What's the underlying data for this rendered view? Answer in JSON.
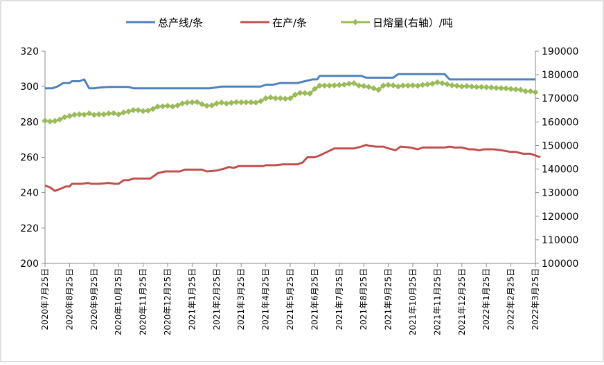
{
  "chart_data": {
    "type": "line",
    "title": "",
    "legend_position": "top",
    "grid": false,
    "x_categories": [
      "2020年7月25日",
      "2020年8月25日",
      "2020年9月25日",
      "2020年10月25日",
      "2020年11月25日",
      "2020年12月25日",
      "2021年1月25日",
      "2021年2月25日",
      "2021年3月25日",
      "2021年4月25日",
      "2021年5月25日",
      "2021年6月25日",
      "2021年7月25日",
      "2021年8月25日",
      "2021年9月25日",
      "2021年10月25日",
      "2021年11月25日",
      "2021年12月25日",
      "2022年1月25日",
      "2022年2月25日",
      "2022年3月25日"
    ],
    "y_left": {
      "min": 200,
      "max": 320,
      "step": 20,
      "ticks": [
        "200",
        "220",
        "240",
        "260",
        "280",
        "300",
        "320"
      ]
    },
    "y_right": {
      "min": 100000,
      "max": 190000,
      "step": 10000,
      "ticks": [
        "100000",
        "110000",
        "120000",
        "130000",
        "140000",
        "150000",
        "160000",
        "170000",
        "180000",
        "190000"
      ]
    },
    "series": [
      {
        "name": "总产线/条",
        "axis": "left",
        "color": "#4F81BD",
        "marker": "none",
        "values": [
          [
            0,
            299
          ],
          [
            0.3,
            299
          ],
          [
            0.5,
            300
          ],
          [
            0.75,
            302
          ],
          [
            1.0,
            302
          ],
          [
            1.1,
            303
          ],
          [
            1.4,
            303
          ],
          [
            1.6,
            304
          ],
          [
            1.8,
            299
          ],
          [
            2.0,
            299
          ],
          [
            2.3,
            299.5
          ],
          [
            2.6,
            299.8
          ],
          [
            3.0,
            299.8
          ],
          [
            3.4,
            299.8
          ],
          [
            3.6,
            299
          ],
          [
            4.0,
            299
          ],
          [
            5.0,
            299
          ],
          [
            6.0,
            299
          ],
          [
            6.7,
            299
          ],
          [
            7.0,
            299.5
          ],
          [
            7.2,
            300
          ],
          [
            8.0,
            300
          ],
          [
            8.8,
            300
          ],
          [
            9.0,
            301
          ],
          [
            9.3,
            301
          ],
          [
            9.6,
            302
          ],
          [
            10.0,
            302
          ],
          [
            10.3,
            302
          ],
          [
            10.6,
            303
          ],
          [
            10.9,
            304
          ],
          [
            11.1,
            304
          ],
          [
            11.2,
            306
          ],
          [
            12.0,
            306
          ],
          [
            12.6,
            306
          ],
          [
            12.9,
            306
          ],
          [
            13.1,
            305
          ],
          [
            14.0,
            305
          ],
          [
            14.2,
            305
          ],
          [
            14.4,
            307
          ],
          [
            15.0,
            307
          ],
          [
            15.5,
            307
          ],
          [
            16.0,
            307
          ],
          [
            16.3,
            307
          ],
          [
            16.5,
            304
          ],
          [
            17.0,
            304
          ],
          [
            18.0,
            304
          ],
          [
            19.0,
            304
          ],
          [
            20.0,
            304
          ]
        ]
      },
      {
        "name": "在产/条",
        "axis": "left",
        "color": "#C0504D",
        "marker": "none",
        "values": [
          [
            0,
            244
          ],
          [
            0.2,
            243
          ],
          [
            0.4,
            241
          ],
          [
            0.6,
            242
          ],
          [
            0.85,
            243.5
          ],
          [
            1.0,
            243.5
          ],
          [
            1.1,
            245
          ],
          [
            1.5,
            245
          ],
          [
            1.75,
            245.5
          ],
          [
            1.9,
            245
          ],
          [
            2.2,
            245
          ],
          [
            2.6,
            245.5
          ],
          [
            2.85,
            245
          ],
          [
            3.0,
            245
          ],
          [
            3.2,
            247
          ],
          [
            3.4,
            247
          ],
          [
            3.6,
            248
          ],
          [
            4.0,
            248
          ],
          [
            4.3,
            248
          ],
          [
            4.6,
            251
          ],
          [
            4.9,
            252
          ],
          [
            5.3,
            252
          ],
          [
            5.5,
            252
          ],
          [
            5.7,
            253
          ],
          [
            6.0,
            253
          ],
          [
            6.4,
            253
          ],
          [
            6.6,
            252
          ],
          [
            7.0,
            252.5
          ],
          [
            7.3,
            253.5
          ],
          [
            7.5,
            254.5
          ],
          [
            7.7,
            254
          ],
          [
            7.9,
            255
          ],
          [
            8.2,
            255
          ],
          [
            8.5,
            255
          ],
          [
            8.9,
            255
          ],
          [
            9.0,
            255.5
          ],
          [
            9.4,
            255.5
          ],
          [
            9.7,
            256
          ],
          [
            10.0,
            256
          ],
          [
            10.3,
            256
          ],
          [
            10.5,
            257
          ],
          [
            10.7,
            260
          ],
          [
            11.0,
            260
          ],
          [
            11.2,
            261
          ],
          [
            11.5,
            263
          ],
          [
            11.8,
            265
          ],
          [
            12.0,
            265
          ],
          [
            12.6,
            265
          ],
          [
            12.9,
            266
          ],
          [
            13.1,
            267
          ],
          [
            13.2,
            266.5
          ],
          [
            13.5,
            266
          ],
          [
            13.8,
            266
          ],
          [
            14.0,
            265
          ],
          [
            14.3,
            264
          ],
          [
            14.5,
            266
          ],
          [
            14.9,
            265.5
          ],
          [
            15.2,
            264.5
          ],
          [
            15.4,
            265.5
          ],
          [
            16.0,
            265.5
          ],
          [
            16.3,
            265.5
          ],
          [
            16.5,
            266
          ],
          [
            16.7,
            265.5
          ],
          [
            17.0,
            265.5
          ],
          [
            17.3,
            264.5
          ],
          [
            17.5,
            264.5
          ],
          [
            17.7,
            264
          ],
          [
            17.9,
            264.5
          ],
          [
            18.3,
            264.5
          ],
          [
            18.6,
            264
          ],
          [
            19.0,
            263
          ],
          [
            19.2,
            263
          ],
          [
            19.5,
            262
          ],
          [
            19.8,
            262
          ],
          [
            20.0,
            261
          ],
          [
            20.2,
            260
          ]
        ]
      },
      {
        "name": "日熔量(右轴）/吨",
        "axis": "right",
        "color": "#9BBB59",
        "marker": "diamond",
        "values": [
          [
            0,
            160500
          ],
          [
            0.2,
            160200
          ],
          [
            0.4,
            160400
          ],
          [
            0.6,
            161000
          ],
          [
            0.8,
            162000
          ],
          [
            1.0,
            162500
          ],
          [
            1.2,
            163000
          ],
          [
            1.4,
            163200
          ],
          [
            1.6,
            163100
          ],
          [
            1.8,
            163600
          ],
          [
            2.0,
            163000
          ],
          [
            2.2,
            163200
          ],
          [
            2.4,
            163200
          ],
          [
            2.6,
            163600
          ],
          [
            2.8,
            163700
          ],
          [
            3.0,
            163200
          ],
          [
            3.2,
            164000
          ],
          [
            3.4,
            164400
          ],
          [
            3.6,
            165000
          ],
          [
            3.8,
            165000
          ],
          [
            4.0,
            164600
          ],
          [
            4.2,
            164800
          ],
          [
            4.4,
            165500
          ],
          [
            4.6,
            166500
          ],
          [
            4.8,
            166600
          ],
          [
            5.0,
            166800
          ],
          [
            5.2,
            166500
          ],
          [
            5.4,
            167000
          ],
          [
            5.6,
            167800
          ],
          [
            5.8,
            168200
          ],
          [
            6.0,
            168300
          ],
          [
            6.2,
            168400
          ],
          [
            6.4,
            167500
          ],
          [
            6.6,
            166800
          ],
          [
            6.8,
            167000
          ],
          [
            7.0,
            167800
          ],
          [
            7.2,
            168200
          ],
          [
            7.4,
            167800
          ],
          [
            7.6,
            168100
          ],
          [
            7.8,
            168400
          ],
          [
            8.0,
            168300
          ],
          [
            8.2,
            168300
          ],
          [
            8.4,
            168300
          ],
          [
            8.6,
            168200
          ],
          [
            8.8,
            168800
          ],
          [
            9.0,
            170000
          ],
          [
            9.2,
            170400
          ],
          [
            9.4,
            170000
          ],
          [
            9.6,
            170000
          ],
          [
            9.8,
            169800
          ],
          [
            10.0,
            170000
          ],
          [
            10.2,
            171500
          ],
          [
            10.4,
            172300
          ],
          [
            10.6,
            172200
          ],
          [
            10.8,
            172000
          ],
          [
            11.0,
            174000
          ],
          [
            11.2,
            175400
          ],
          [
            11.4,
            175400
          ],
          [
            11.6,
            175400
          ],
          [
            11.8,
            175500
          ],
          [
            12.0,
            175600
          ],
          [
            12.2,
            175800
          ],
          [
            12.4,
            176200
          ],
          [
            12.6,
            176400
          ],
          [
            12.8,
            175400
          ],
          [
            13.0,
            175200
          ],
          [
            13.2,
            174800
          ],
          [
            13.4,
            174300
          ],
          [
            13.6,
            173600
          ],
          [
            13.8,
            175400
          ],
          [
            14.0,
            175700
          ],
          [
            14.2,
            175500
          ],
          [
            14.4,
            175000
          ],
          [
            14.6,
            175400
          ],
          [
            14.8,
            175400
          ],
          [
            15.0,
            175500
          ],
          [
            15.2,
            175300
          ],
          [
            15.4,
            175700
          ],
          [
            15.6,
            175900
          ],
          [
            15.8,
            176200
          ],
          [
            16.0,
            176800
          ],
          [
            16.2,
            176400
          ],
          [
            16.4,
            176000
          ],
          [
            16.6,
            175500
          ],
          [
            16.8,
            175300
          ],
          [
            17.0,
            175000
          ],
          [
            17.2,
            175200
          ],
          [
            17.4,
            175000
          ],
          [
            17.6,
            174800
          ],
          [
            17.8,
            174800
          ],
          [
            18.0,
            174700
          ],
          [
            18.2,
            174600
          ],
          [
            18.4,
            174400
          ],
          [
            18.6,
            174300
          ],
          [
            18.8,
            174200
          ],
          [
            19.0,
            174000
          ],
          [
            19.2,
            173800
          ],
          [
            19.4,
            173600
          ],
          [
            19.6,
            173000
          ],
          [
            19.8,
            173000
          ],
          [
            20.0,
            172600
          ]
        ]
      }
    ]
  }
}
